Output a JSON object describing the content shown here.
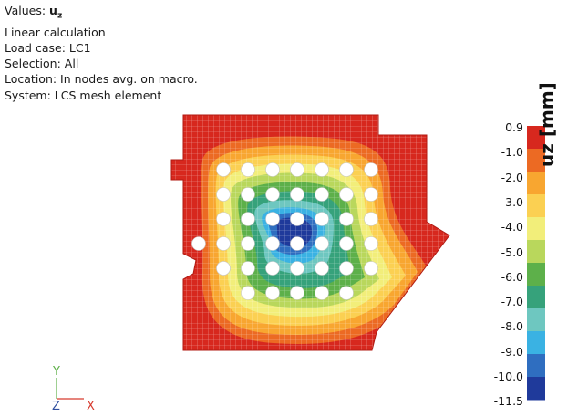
{
  "info": {
    "values_prefix": "Values:",
    "values_symbol": "uz",
    "lines": [
      "Linear calculation",
      "Load case: LC1",
      "Selection: All",
      "Location: In nodes avg. on macro.",
      "System: LCS mesh element"
    ]
  },
  "legend": {
    "title": "uz [mm]",
    "ticks": [
      "0.9",
      "-1.0",
      "-2.0",
      "-3.0",
      "-4.0",
      "-5.0",
      "-6.0",
      "-7.0",
      "-8.0",
      "-9.0",
      "-10.0",
      "-11.5"
    ],
    "colors": [
      "#d7281e",
      "#ec6a23",
      "#f8a630",
      "#fbd052",
      "#f2ee7a",
      "#b9d75c",
      "#5db04a",
      "#36a27b",
      "#6ec7c0",
      "#3ab2e3",
      "#2f6ec0",
      "#1f3a9b"
    ]
  },
  "axes": {
    "y": "Y",
    "z": "Z",
    "x": "X",
    "y_color": "#5fb04a",
    "x_color": "#d73a2e",
    "z_color": "#2f4fa0"
  }
}
